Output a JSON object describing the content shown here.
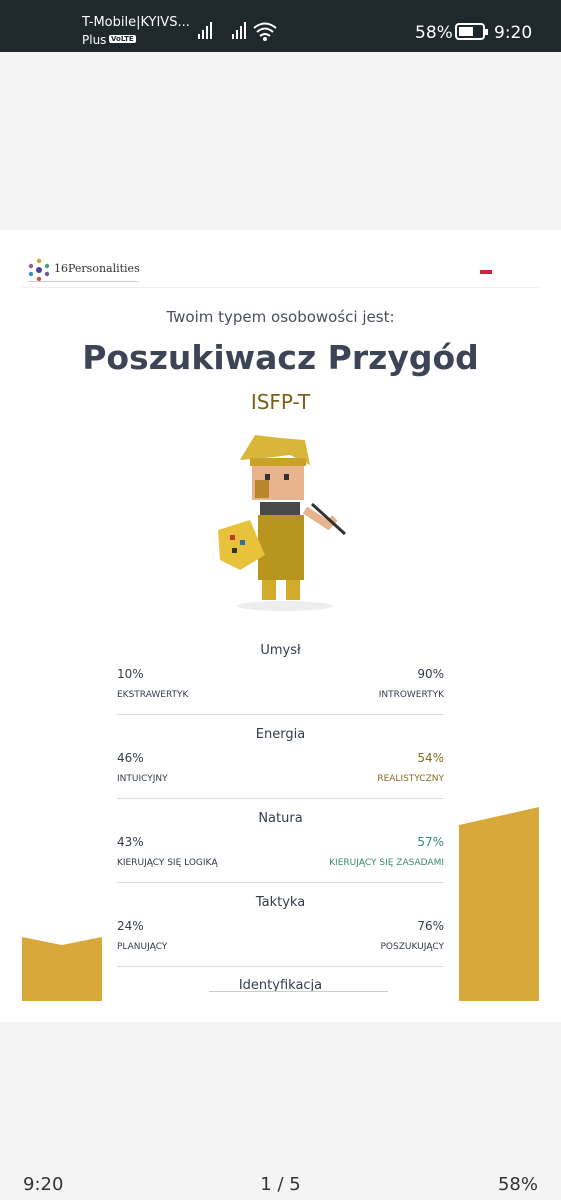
{
  "status_bar": {
    "carrier": "T-Mobile|KYIVS...",
    "carrier_line2": "Plus",
    "volte": "VoLTE",
    "battery": "58%",
    "time": "9:20"
  },
  "header": {
    "logo_number": "16",
    "logo_text": "Personalities"
  },
  "result": {
    "intro": "Twoim typem osobowości jest:",
    "type_name": "Poszukiwacz Przygód",
    "code": "ISFP-T"
  },
  "traits": [
    {
      "title": "Umysł",
      "left_value": "10%",
      "left_label": "EKSTRAWERTYK",
      "right_value": "90%",
      "right_label": "INTROWERTYK"
    },
    {
      "title": "Energia",
      "left_value": "46%",
      "left_label": "INTUICYJNY",
      "right_value": "54%",
      "right_label": "REALISTYCZNY"
    },
    {
      "title": "Natura",
      "left_value": "43%",
      "left_label": "KIERUJĄCY SIĘ LOGIKĄ",
      "right_value": "57%",
      "right_label": "KIERUJĄCY SIĘ ZASADAMI"
    },
    {
      "title": "Taktyka",
      "left_value": "24%",
      "left_label": "PLANUJĄCY",
      "right_value": "76%",
      "right_label": "POSZUKUJĄCY"
    }
  ],
  "next_section": "Identyfikacja",
  "footer": {
    "time": "9:20",
    "page": "1 / 5",
    "battery": "58%"
  }
}
